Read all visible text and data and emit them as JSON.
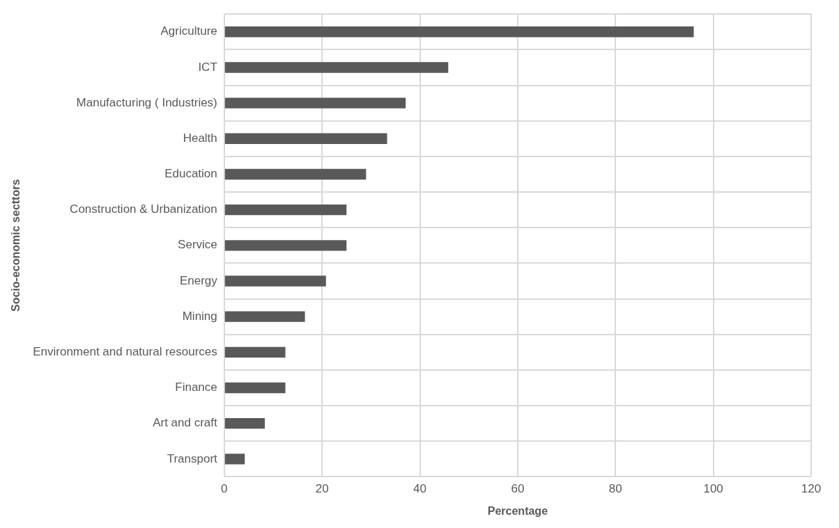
{
  "chart_data": {
    "type": "bar",
    "orientation": "horizontal",
    "xlabel": "Percentage",
    "ylabel": "Socio-economic secttors",
    "categories": [
      "Agriculture",
      "ICT",
      "Manufacturing ( Industries)",
      "Health",
      "Education",
      "Construction & Urbanization",
      "Service",
      "Energy",
      "Mining",
      "Environment and natural resources",
      "Finance",
      "Art and craft",
      "Transport"
    ],
    "values": [
      96,
      45.8,
      37.1,
      33.3,
      29,
      25,
      25,
      20.8,
      16.5,
      12.5,
      12.5,
      8.3,
      4.2
    ],
    "color": "#595959",
    "xlim": [
      0,
      120
    ],
    "xticks": [
      0,
      20,
      40,
      60,
      80,
      100,
      120
    ],
    "grid": true
  }
}
